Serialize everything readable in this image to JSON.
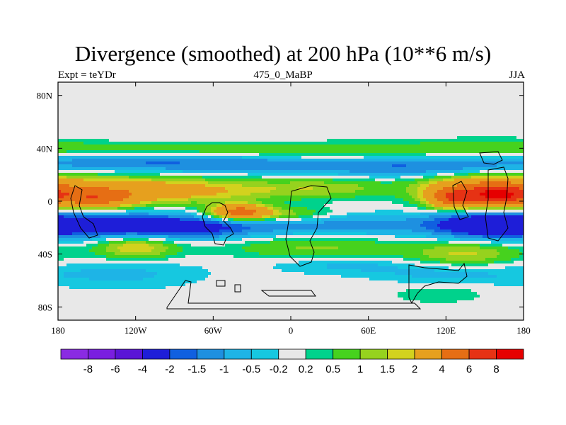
{
  "chart_data": {
    "type": "heatmap",
    "title": "Divergence (smoothed) at 200 hPa (10**6 m/s)",
    "subtitle_left": "Expt = teYDr",
    "subtitle_center": "475_0_MaBP",
    "subtitle_right": "JJA",
    "xlim": [
      -180,
      180
    ],
    "ylim": [
      -90,
      90
    ],
    "x_ticks": [
      {
        "value": -180,
        "label": "180"
      },
      {
        "value": -120,
        "label": "120W"
      },
      {
        "value": -60,
        "label": "60W"
      },
      {
        "value": 0,
        "label": "0"
      },
      {
        "value": 60,
        "label": "60E"
      },
      {
        "value": 120,
        "label": "120E"
      },
      {
        "value": 180,
        "label": "180"
      }
    ],
    "y_ticks": [
      {
        "value": 80,
        "label": "80N"
      },
      {
        "value": 40,
        "label": "40N"
      },
      {
        "value": 0,
        "label": "0"
      },
      {
        "value": -40,
        "label": "40S"
      },
      {
        "value": -80,
        "label": "80S"
      }
    ],
    "colorbar": {
      "colors": [
        "#8a2be2",
        "#7a1ee0",
        "#5a14d6",
        "#1e1ed8",
        "#1060e0",
        "#1e90e0",
        "#1eb4e6",
        "#16c8e0",
        "#e8e8e8",
        "#00d28c",
        "#46d21e",
        "#96d21e",
        "#d2d21e",
        "#e6a01e",
        "#e66e14",
        "#e63214",
        "#e60000"
      ],
      "labels": [
        "-8",
        "-6",
        "-4",
        "-2",
        "-1.5",
        "-1",
        "-0.5",
        "-0.2",
        "0.2",
        "0.5",
        "1",
        "1.5",
        "2",
        "4",
        "6",
        "8"
      ]
    },
    "bands": [
      {
        "lat": 39,
        "lon": -150,
        "value": 0.5,
        "lon_sigma": 70,
        "lat_sigma": 4
      },
      {
        "lat": 39,
        "lon": -70,
        "value": 0.5,
        "lon_sigma": 60,
        "lat_sigma": 4
      },
      {
        "lat": 38,
        "lon": 10,
        "value": 0.5,
        "lon_sigma": 40,
        "lat_sigma": 4
      },
      {
        "lat": 40,
        "lon": 90,
        "value": 0.5,
        "lon_sigma": 50,
        "lat_sigma": 5
      },
      {
        "lat": 42,
        "lon": 160,
        "value": 0.5,
        "lon_sigma": 30,
        "lat_sigma": 4
      },
      {
        "lat": 30,
        "lon": -150,
        "value": -0.8,
        "lon_sigma": 50,
        "lat_sigma": 5
      },
      {
        "lat": 28,
        "lon": -80,
        "value": -1.2,
        "lon_sigma": 55,
        "lat_sigma": 5
      },
      {
        "lat": 28,
        "lon": -20,
        "value": -0.6,
        "lon_sigma": 30,
        "lat_sigma": 4
      },
      {
        "lat": 26,
        "lon": 60,
        "value": -1.2,
        "lon_sigma": 45,
        "lat_sigma": 5
      },
      {
        "lat": 25,
        "lon": 130,
        "value": -1.0,
        "lon_sigma": 40,
        "lat_sigma": 5
      },
      {
        "lat": 8,
        "lon": -140,
        "value": 2.2,
        "lon_sigma": 45,
        "lat_sigma": 8
      },
      {
        "lat": 8,
        "lon": -70,
        "value": 1.8,
        "lon_sigma": 50,
        "lat_sigma": 6
      },
      {
        "lat": 10,
        "lon": 30,
        "value": 1.2,
        "lon_sigma": 35,
        "lat_sigma": 5
      },
      {
        "lat": 8,
        "lon": 130,
        "value": 2.5,
        "lon_sigma": 25,
        "lat_sigma": 8
      },
      {
        "lat": 8,
        "lon": 165,
        "value": 2.8,
        "lon_sigma": 25,
        "lat_sigma": 8
      },
      {
        "lat": 2,
        "lon": -150,
        "value": 3.5,
        "lon_sigma": 20,
        "lat_sigma": 5
      },
      {
        "lat": 2,
        "lon": 125,
        "value": 4.0,
        "lon_sigma": 12,
        "lat_sigma": 5
      },
      {
        "lat": 4,
        "lon": 160,
        "value": 4.5,
        "lon_sigma": 15,
        "lat_sigma": 5
      },
      {
        "lat": -8,
        "lon": -40,
        "value": 4.5,
        "lon_sigma": 15,
        "lat_sigma": 4
      },
      {
        "lat": -10,
        "lon": -10,
        "value": 1.5,
        "lon_sigma": 30,
        "lat_sigma": 4
      },
      {
        "lat": -18,
        "lon": -140,
        "value": -2.5,
        "lon_sigma": 45,
        "lat_sigma": 7
      },
      {
        "lat": -20,
        "lon": -70,
        "value": -1.8,
        "lon_sigma": 35,
        "lat_sigma": 6
      },
      {
        "lat": -18,
        "lon": 40,
        "value": -1.3,
        "lon_sigma": 55,
        "lat_sigma": 6
      },
      {
        "lat": -18,
        "lon": 150,
        "value": -2.8,
        "lon_sigma": 30,
        "lat_sigma": 7
      },
      {
        "lat": -35,
        "lon": -120,
        "value": 2.0,
        "lon_sigma": 22,
        "lat_sigma": 6
      },
      {
        "lat": -35,
        "lon": 20,
        "value": 1.1,
        "lon_sigma": 50,
        "lat_sigma": 6
      },
      {
        "lat": -40,
        "lon": 135,
        "value": 1.6,
        "lon_sigma": 30,
        "lat_sigma": 6
      },
      {
        "lat": -55,
        "lon": -130,
        "value": -0.6,
        "lon_sigma": 45,
        "lat_sigma": 8
      },
      {
        "lat": -48,
        "lon": 40,
        "value": -0.6,
        "lon_sigma": 40,
        "lat_sigma": 5
      },
      {
        "lat": -55,
        "lon": 120,
        "value": -0.6,
        "lon_sigma": 40,
        "lat_sigma": 6
      },
      {
        "lat": -70,
        "lon": 115,
        "value": 0.5,
        "lon_sigma": 25,
        "lat_sigma": 5
      }
    ]
  }
}
